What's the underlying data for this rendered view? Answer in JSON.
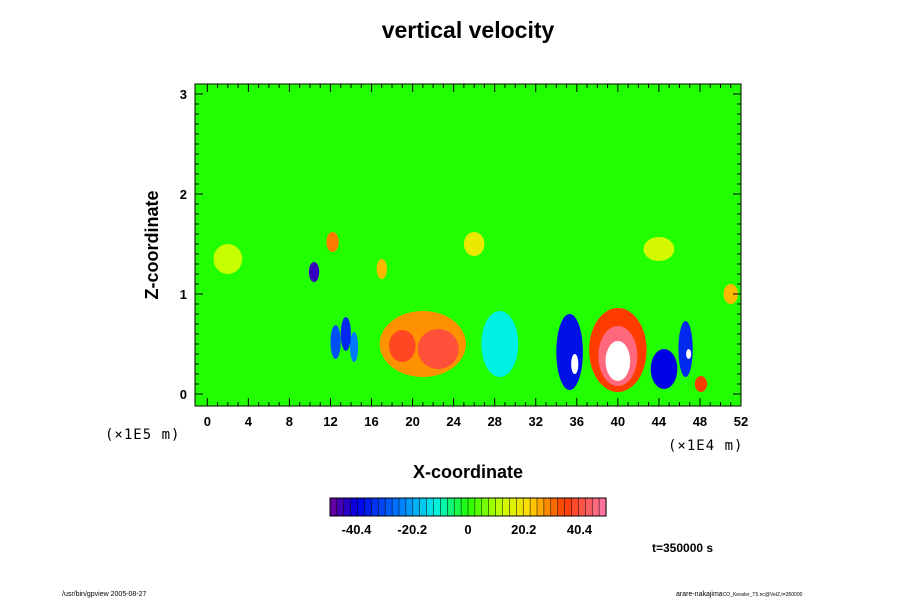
{
  "chart_data": {
    "type": "heatmap",
    "title": "vertical velocity",
    "xlabel": "X-coordinate",
    "ylabel": "Z-coordinate",
    "x_scale_label": "(×1E4 m)",
    "y_scale_label": "(×1E5 m)",
    "xlim": [
      -1.2,
      52
    ],
    "ylim": [
      -0.12,
      3.1
    ],
    "x_ticks": [
      0,
      4,
      8,
      12,
      16,
      20,
      24,
      28,
      32,
      36,
      40,
      44,
      48,
      52
    ],
    "y_ticks": [
      0,
      1,
      2,
      3
    ],
    "background_value": 0,
    "features": [
      {
        "x": 12.5,
        "z": 0.52,
        "rx": 0.5,
        "rz": 0.17,
        "value": -30
      },
      {
        "x": 13.5,
        "z": 0.6,
        "rx": 0.5,
        "rz": 0.17,
        "value": -35
      },
      {
        "x": 14.3,
        "z": 0.47,
        "rx": 0.4,
        "rz": 0.15,
        "value": -25
      },
      {
        "x": 10.4,
        "z": 1.22,
        "rx": 0.5,
        "rz": 0.1,
        "value": -45
      },
      {
        "x": 12.2,
        "z": 1.52,
        "rx": 0.6,
        "rz": 0.1,
        "value": 30
      },
      {
        "x": 17.0,
        "z": 1.25,
        "rx": 0.5,
        "rz": 0.1,
        "value": 25
      },
      {
        "x": 21.0,
        "z": 0.5,
        "rx": 4.2,
        "rz": 0.33,
        "value": 28
      },
      {
        "x": 22.5,
        "z": 0.45,
        "rx": 2.0,
        "rz": 0.2,
        "value": 40
      },
      {
        "x": 19.0,
        "z": 0.48,
        "rx": 1.3,
        "rz": 0.16,
        "value": 38
      },
      {
        "x": 28.5,
        "z": 0.5,
        "rx": 1.8,
        "rz": 0.33,
        "value": -12
      },
      {
        "x": 35.3,
        "z": 0.42,
        "rx": 1.3,
        "rz": 0.38,
        "value": -38
      },
      {
        "x": 35.8,
        "z": 0.3,
        "rx": 0.35,
        "rz": 0.1,
        "value": -55
      },
      {
        "x": 40.0,
        "z": 0.44,
        "rx": 2.8,
        "rz": 0.42,
        "value": 35
      },
      {
        "x": 40.0,
        "z": 0.38,
        "rx": 1.9,
        "rz": 0.3,
        "value": 46
      },
      {
        "x": 40.0,
        "z": 0.33,
        "rx": 1.2,
        "rz": 0.2,
        "value": 60
      },
      {
        "x": 44.5,
        "z": 0.25,
        "rx": 1.3,
        "rz": 0.2,
        "value": -40
      },
      {
        "x": 46.6,
        "z": 0.45,
        "rx": 0.7,
        "rz": 0.28,
        "value": -35
      },
      {
        "x": 46.9,
        "z": 0.4,
        "rx": 0.25,
        "rz": 0.05,
        "value": -55
      },
      {
        "x": 48.1,
        "z": 0.1,
        "rx": 0.6,
        "rz": 0.08,
        "value": 35
      },
      {
        "x": 51.0,
        "z": 1.0,
        "rx": 0.7,
        "rz": 0.1,
        "value": 25
      },
      {
        "x": 2.0,
        "z": 1.35,
        "rx": 1.4,
        "rz": 0.15,
        "value": 12
      },
      {
        "x": 26.0,
        "z": 1.5,
        "rx": 1.0,
        "rz": 0.12,
        "value": 18
      },
      {
        "x": 44.0,
        "z": 1.45,
        "rx": 1.5,
        "rz": 0.12,
        "value": 14
      }
    ],
    "colorbar": {
      "ticks": [
        -40.4,
        -20.2,
        0,
        20.2,
        40.4
      ],
      "tick_labels": [
        "-40.4",
        "-20.2",
        "0",
        "20.2",
        "40.4"
      ],
      "range": [
        -50,
        50
      ]
    },
    "time_label": "t=350000 s"
  },
  "footer": {
    "left": "/usr/bin/gpview 2005-08-27",
    "right_main": "arare-nakajima",
    "right_sub": "CO_Kessler_T5.nc@VelZ,t=350000"
  },
  "colors": {
    "background": "#ffffff",
    "zero": "#22ff00",
    "saturated_high": "#ffffff"
  }
}
